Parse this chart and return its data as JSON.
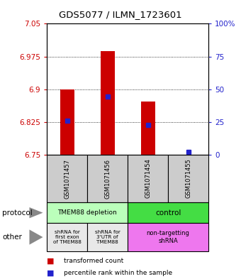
{
  "title": "GDS5077 / ILMN_1723601",
  "samples": [
    "GSM1071457",
    "GSM1071456",
    "GSM1071454",
    "GSM1071455"
  ],
  "bar_bottoms": [
    6.75,
    6.75,
    6.75,
    6.75
  ],
  "bar_tops": [
    6.9,
    6.988,
    6.872,
    6.75
  ],
  "blue_y": [
    6.828,
    6.883,
    6.818,
    6.757
  ],
  "ylim": [
    6.75,
    7.05
  ],
  "yticks_left": [
    6.75,
    6.825,
    6.9,
    6.975,
    7.05
  ],
  "yticks_right_vals": [
    0,
    25,
    50,
    75,
    100
  ],
  "bar_color": "#cc0000",
  "blue_color": "#2222cc",
  "bar_width": 0.35,
  "tick_label_color_left": "#cc0000",
  "tick_label_color_right": "#2222cc",
  "protocol_labels": [
    "TMEM88 depletion",
    "control"
  ],
  "protocol_colors": [
    "#bbffbb",
    "#44dd44"
  ],
  "other_labels": [
    "shRNA for\nfirst exon\nof TMEM88",
    "shRNA for\n3'UTR of\nTMEM88",
    "non-targetting\nshRNA"
  ],
  "other_colors": [
    "#e8e8e8",
    "#e8e8e8",
    "#ee77ee"
  ],
  "sample_bg": "#cccccc",
  "legend_red": "transformed count",
  "legend_blue": "percentile rank within the sample",
  "arrow_color": "#888888"
}
